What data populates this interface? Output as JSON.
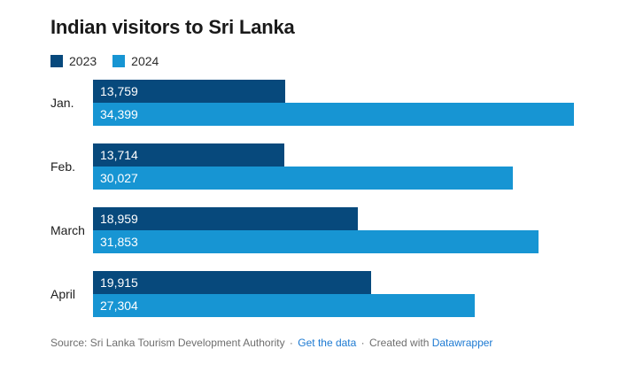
{
  "header": {
    "title": "Indian visitors to Sri Lanka"
  },
  "legend": {
    "items": [
      {
        "label": "2023",
        "color": "#07497c"
      },
      {
        "label": "2024",
        "color": "#1795d3"
      }
    ]
  },
  "footer": {
    "source_text": "Source: Sri Lanka Tourism Development Authority",
    "separator": "·",
    "get_data_label": "Get the data",
    "created_with": "Created with",
    "datawrapper_label": "Datawrapper",
    "link_color": "#1d7ad2",
    "text_color": "#6e6e6e"
  },
  "chart_data": {
    "type": "bar",
    "orientation": "horizontal",
    "title": "Indian visitors to Sri Lanka",
    "categories": [
      "Jan.",
      "Feb.",
      "March",
      "April"
    ],
    "series": [
      {
        "name": "2023",
        "color": "#07497c",
        "values": [
          13759,
          13714,
          18959,
          19915
        ],
        "labels": [
          "13,759",
          "13,714",
          "18,959",
          "19,915"
        ]
      },
      {
        "name": "2024",
        "color": "#1795d3",
        "values": [
          34399,
          30027,
          31853,
          27304
        ],
        "labels": [
          "34,399",
          "30,027",
          "31,853",
          "27,304"
        ]
      }
    ],
    "xlim": [
      0,
      34399
    ],
    "grid": false,
    "legend_position": "top-left",
    "value_labels": "inside-start"
  }
}
